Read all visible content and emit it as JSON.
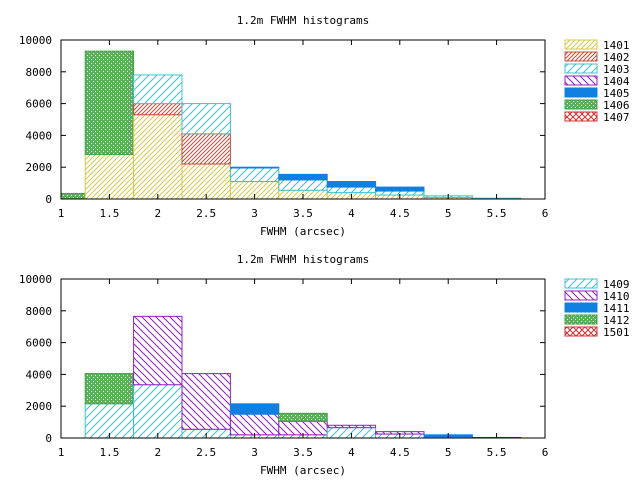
{
  "chart_data": [
    {
      "type": "bar",
      "stacked": true,
      "title": "1.2m FWHM histograms",
      "xlabel": "FWHM (arcsec)",
      "ylabel": "",
      "xlim": [
        1,
        6
      ],
      "ylim": [
        0,
        10000
      ],
      "xticks": [
        "1",
        "1.5",
        "2",
        "2.5",
        "3",
        "3.5",
        "4",
        "4.5",
        "5",
        "5.5",
        "6"
      ],
      "yticks": [
        "0",
        "2000",
        "4000",
        "6000",
        "8000",
        "10000"
      ],
      "bin_width": 0.5,
      "bin_centers": [
        1,
        1.5,
        2,
        2.5,
        3,
        3.5,
        4,
        4.5,
        5,
        5.5
      ],
      "legend_position": "right",
      "series": [
        {
          "name": "1401",
          "color": "#d4c850",
          "pattern": "diag-right",
          "values": [
            0,
            2800,
            5300,
            2200,
            1100,
            550,
            400,
            250,
            100,
            20
          ]
        },
        {
          "name": "1402",
          "color": "#c05040",
          "pattern": "diag-right-dense",
          "values": [
            0,
            0,
            700,
            1900,
            0,
            0,
            0,
            0,
            0,
            0
          ]
        },
        {
          "name": "1403",
          "color": "#40c0d0",
          "pattern": "diag-right-sparse",
          "values": [
            0,
            0,
            1800,
            1900,
            850,
            650,
            350,
            250,
            100,
            30
          ]
        },
        {
          "name": "1404",
          "color": "#9020c0",
          "pattern": "diag-left",
          "values": [
            0,
            0,
            0,
            0,
            0,
            0,
            0,
            0,
            0,
            0
          ]
        },
        {
          "name": "1405",
          "color": "#1080e0",
          "pattern": "solid",
          "values": [
            0,
            0,
            0,
            0,
            50,
            350,
            350,
            250,
            0,
            0
          ]
        },
        {
          "name": "1406",
          "color": "#40a040",
          "pattern": "crosshatch",
          "values": [
            350,
            6500,
            0,
            0,
            0,
            0,
            0,
            0,
            0,
            0
          ]
        },
        {
          "name": "1407",
          "color": "#d03030",
          "pattern": "x",
          "values": [
            0,
            0,
            0,
            0,
            0,
            0,
            0,
            0,
            0,
            0
          ]
        }
      ]
    },
    {
      "type": "bar",
      "stacked": true,
      "title": "1.2m FWHM histograms",
      "xlabel": "FWHM (arcsec)",
      "ylabel": "",
      "xlim": [
        1,
        6
      ],
      "ylim": [
        0,
        10000
      ],
      "xticks": [
        "1",
        "1.5",
        "2",
        "2.5",
        "3",
        "3.5",
        "4",
        "4.5",
        "5",
        "5.5",
        "6"
      ],
      "yticks": [
        "0",
        "2000",
        "4000",
        "6000",
        "8000",
        "10000"
      ],
      "bin_width": 0.5,
      "bin_centers": [
        1,
        1.5,
        2,
        2.5,
        3,
        3.5,
        4,
        4.5,
        5,
        5.5
      ],
      "legend_position": "right",
      "series": [
        {
          "name": "1409",
          "color": "#40c0d0",
          "pattern": "diag-right-sparse",
          "values": [
            0,
            2150,
            3350,
            550,
            200,
            200,
            650,
            250,
            80,
            20
          ]
        },
        {
          "name": "1410",
          "color": "#9020c0",
          "pattern": "diag-left",
          "values": [
            0,
            0,
            4300,
            3500,
            1300,
            850,
            150,
            150,
            20,
            10
          ]
        },
        {
          "name": "1411",
          "color": "#1080e0",
          "pattern": "solid",
          "values": [
            0,
            0,
            0,
            0,
            650,
            0,
            0,
            0,
            100,
            0
          ]
        },
        {
          "name": "1412",
          "color": "#40a040",
          "pattern": "crosshatch",
          "values": [
            0,
            1900,
            0,
            0,
            0,
            500,
            0,
            0,
            0,
            0
          ]
        },
        {
          "name": "1501",
          "color": "#d03030",
          "pattern": "x",
          "values": [
            0,
            0,
            0,
            0,
            0,
            0,
            0,
            0,
            0,
            0
          ]
        }
      ]
    }
  ]
}
